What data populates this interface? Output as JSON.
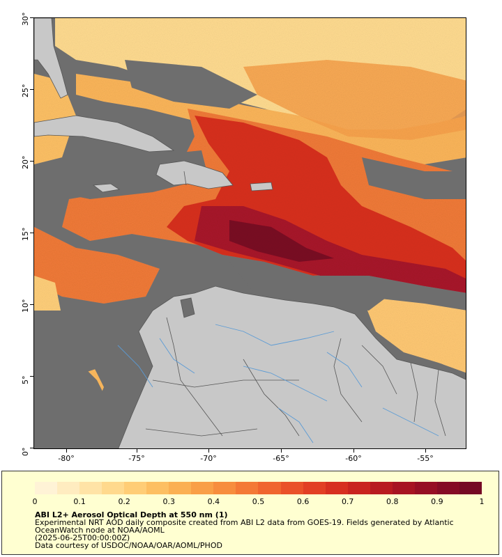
{
  "map": {
    "lat_labels": [
      "30°",
      "25°",
      "20°",
      "15°",
      "10°",
      "5°",
      "0°"
    ],
    "lon_labels": [
      "-80°",
      "-75°",
      "-70°",
      "-65°",
      "-60°",
      "-55°"
    ],
    "colors": {
      "cloud_gray": "#6e6e6e",
      "land": "#c8c8c8",
      "border": "#555555",
      "river": "#5b9bd5",
      "aod_low": "#ffe8a8",
      "aod_mid": "#f5883a",
      "aod_high": "#d8261a",
      "aod_max": "#7a0a24"
    }
  },
  "legend": {
    "ticks": [
      "0",
      "0.1",
      "0.2",
      "0.3",
      "0.4",
      "0.5",
      "0.6",
      "0.7",
      "0.8",
      "0.9",
      "1"
    ],
    "title": "ABI L2+ Aerosol Optical Depth at 550 nm (1)",
    "line1": "Experimental NRT AOD daily composite created from ABI L2 data from GOES-19. Fields generated by Atlantic",
    "line2": "OceanWatch node at NOAA/AOML",
    "line3": "(2025-06-25T00:00:00Z)",
    "line4": "Data courtesy of USDOC/NOAA/OAR/AOML/PHOD",
    "colorbar": [
      "#fff3d6",
      "#ffecc0",
      "#ffe3a6",
      "#ffd98d",
      "#ffcd76",
      "#fdbf62",
      "#fbb053",
      "#f99f47",
      "#f78d3e",
      "#f47936",
      "#f0652f",
      "#ea5129",
      "#e23f24",
      "#d72f20",
      "#c9231f",
      "#b81a20",
      "#a71322",
      "#960e24",
      "#850b25",
      "#750924"
    ]
  }
}
